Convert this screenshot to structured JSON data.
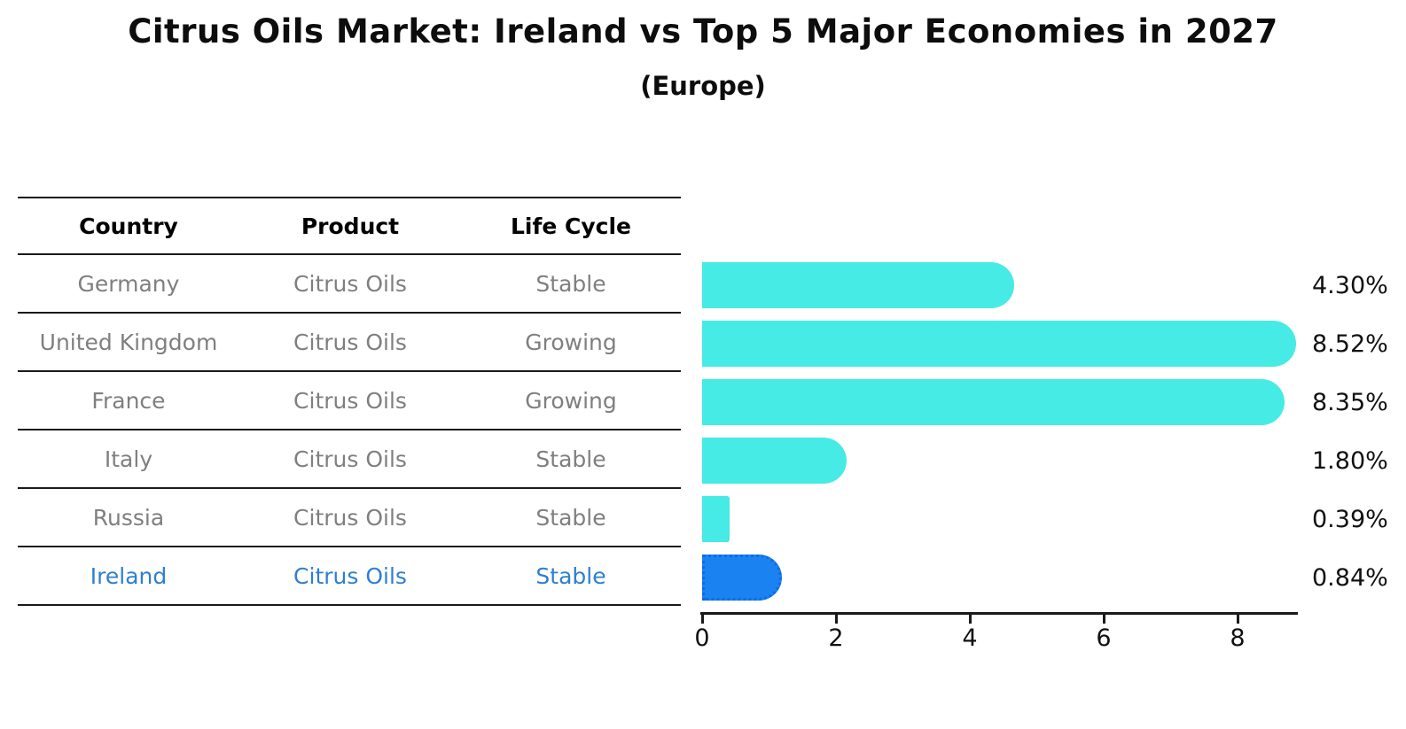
{
  "title": "Citrus Oils Market: Ireland vs Top 5 Major Economies in 2027",
  "subtitle": "(Europe)",
  "table": {
    "headers": [
      "Country",
      "Product",
      "Life Cycle"
    ],
    "rows": [
      {
        "country": "Germany",
        "product": "Citrus Oils",
        "life_cycle": "Stable",
        "highlighted": false
      },
      {
        "country": "United Kingdom",
        "product": "Citrus Oils",
        "life_cycle": "Growing",
        "highlighted": false
      },
      {
        "country": "France",
        "product": "Citrus Oils",
        "life_cycle": "Growing",
        "highlighted": false
      },
      {
        "country": "Italy",
        "product": "Citrus Oils",
        "life_cycle": "Stable",
        "highlighted": false
      },
      {
        "country": "Russia",
        "product": "Citrus Oils",
        "life_cycle": "Stable",
        "highlighted": false
      },
      {
        "country": "Ireland",
        "product": "Citrus Oils",
        "life_cycle": "Stable",
        "highlighted": true
      }
    ]
  },
  "chart_data": {
    "type": "bar",
    "orientation": "horizontal",
    "title": "Citrus Oils Market: Ireland vs Top 5 Major Economies in 2027",
    "subtitle": "(Europe)",
    "categories": [
      "Germany",
      "United Kingdom",
      "France",
      "Italy",
      "Russia",
      "Ireland"
    ],
    "values": [
      4.3,
      8.52,
      8.35,
      1.8,
      0.39,
      0.84
    ],
    "value_labels": [
      "4.30%",
      "8.52%",
      "8.35%",
      "1.80%",
      "0.39%",
      "0.84%"
    ],
    "x_ticks": [
      0,
      2,
      4,
      6,
      8
    ],
    "xlim": [
      0,
      8.9
    ],
    "grid": false,
    "legend": false,
    "bar_color": "#45ebe4",
    "highlight_bar_color": "#1b82f2",
    "highlight_index": 5,
    "highlight_category": "Ireland"
  },
  "colors": {
    "bar": "#45ebe4",
    "highlight_bar": "#1b82f2",
    "highlight_text": "#2e7fd0",
    "row_text": "#7f7f7f",
    "header_text": "#000000",
    "axis_line": "#1a1a1a",
    "background": "#ffffff"
  }
}
